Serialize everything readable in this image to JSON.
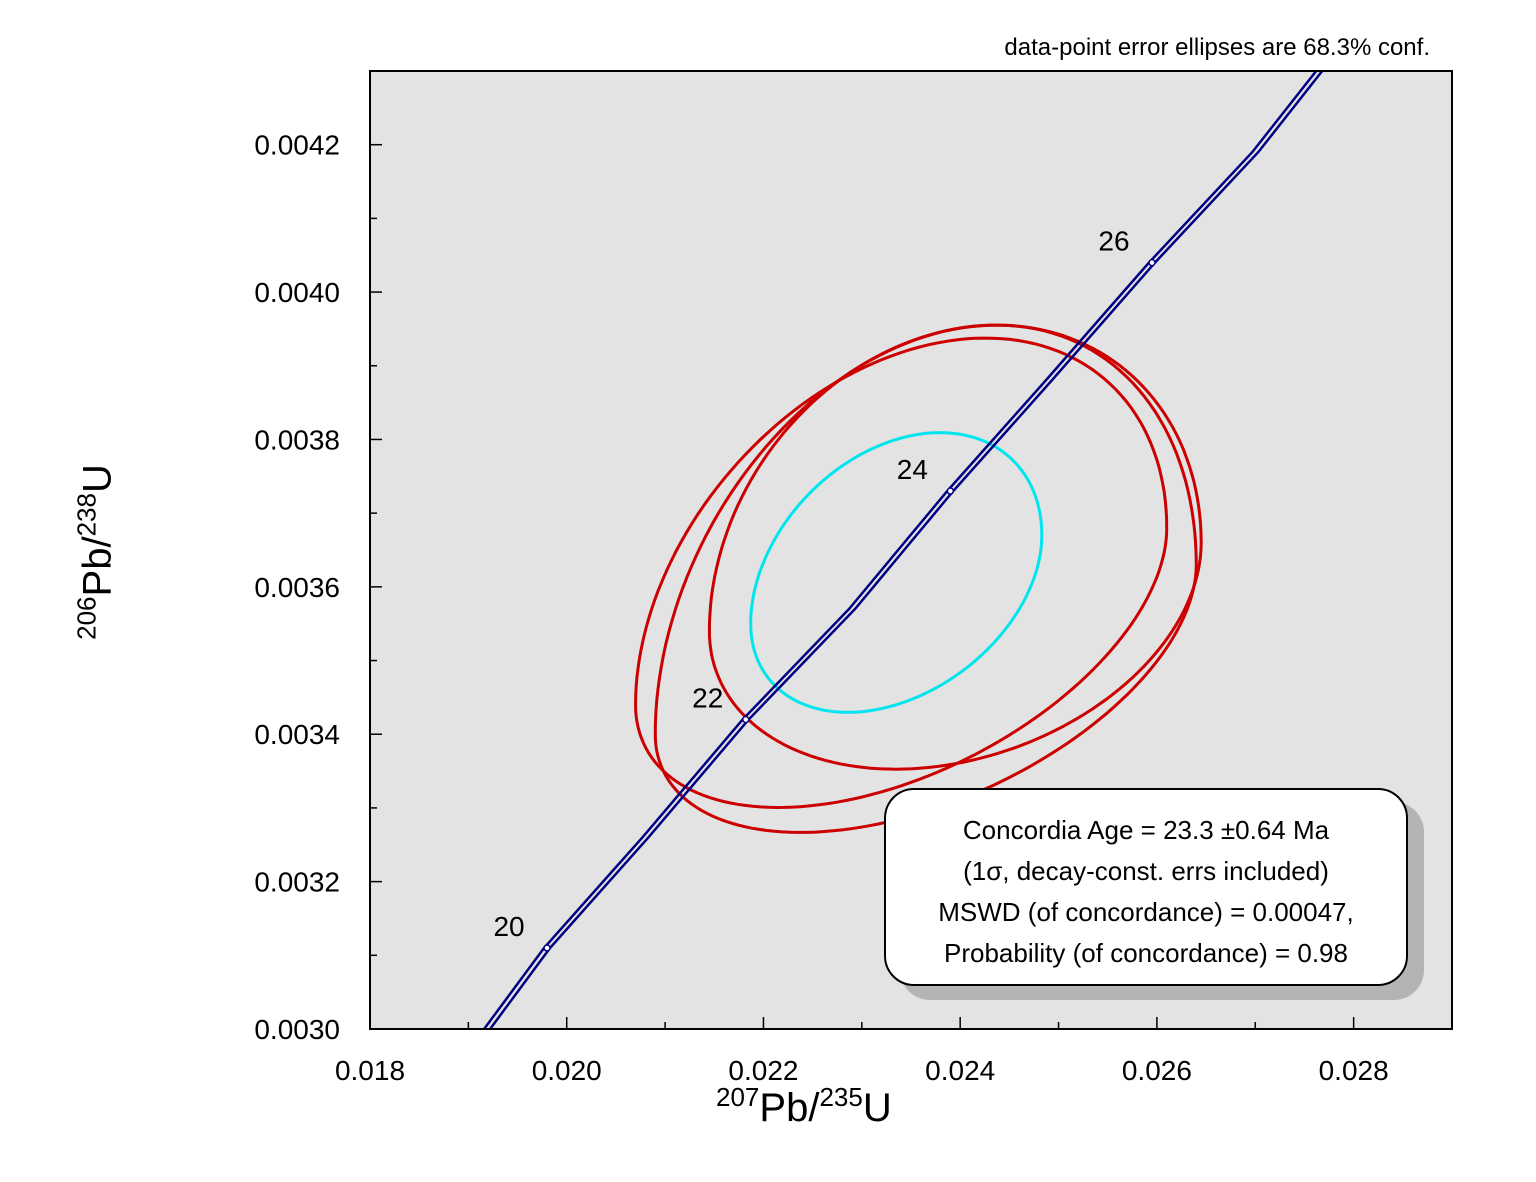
{
  "chart_data": {
    "type": "concordia",
    "note": "data-point error ellipses are 68.3% conf.",
    "xlabel": {
      "sup1": "207",
      "main1": "Pb/",
      "sup2": "235",
      "main2": "U"
    },
    "ylabel": {
      "sup1": "206",
      "main1": "Pb/",
      "sup2": "238",
      "main2": "U"
    },
    "xlim": [
      0.018,
      0.029
    ],
    "ylim": [
      0.003,
      0.0043
    ],
    "x_ticks": [
      "0.018",
      "0.020",
      "0.022",
      "0.024",
      "0.026",
      "0.028"
    ],
    "y_ticks": [
      "0.0030",
      "0.0032",
      "0.0034",
      "0.0036",
      "0.0038",
      "0.0040",
      "0.0042"
    ],
    "background": "#e3e3e3",
    "concordia": {
      "color": "#000080",
      "points": [
        {
          "x": 0.01919,
          "y": 0.003,
          "age": null
        },
        {
          "x": 0.0198,
          "y": 0.00311,
          "age": "20"
        },
        {
          "x": 0.0208,
          "y": 0.00326,
          "age": null
        },
        {
          "x": 0.02182,
          "y": 0.00342,
          "age": "22"
        },
        {
          "x": 0.0229,
          "y": 0.00357,
          "age": null
        },
        {
          "x": 0.0239,
          "y": 0.00373,
          "age": "24"
        },
        {
          "x": 0.0249,
          "y": 0.00388,
          "age": null
        },
        {
          "x": 0.02595,
          "y": 0.00404,
          "age": "26"
        },
        {
          "x": 0.027,
          "y": 0.00419,
          "age": null
        },
        {
          "x": 0.02765,
          "y": 0.0043,
          "age": null
        }
      ]
    },
    "ellipses": [
      {
        "cx": 0.02365,
        "cy": 0.003515,
        "rx": 0.00275,
        "ry": 0.000425,
        "ry2": 0.00022,
        "tilt": 0.000115,
        "color": "#cc0000"
      },
      {
        "cx": 0.0234,
        "cy": 0.00356,
        "rx": 0.0027,
        "ry": 0.000358,
        "ry2": 0.00023,
        "tilt": 0.00012,
        "color": "#cc0000"
      },
      {
        "cx": 0.02395,
        "cy": 0.0036,
        "rx": 0.0025,
        "ry": 0.00035,
        "ry2": 0.00024,
        "tilt": 6e-05,
        "color": "#cc0000"
      },
      {
        "cx": 0.02335,
        "cy": 0.00361,
        "rx": 0.00148,
        "ry": 0.00019,
        "ry2": 0.00017,
        "tilt": 6e-05,
        "color": "#00e5ee"
      }
    ],
    "info_box": [
      "Concordia  Age = 23.3 ±0.64  Ma",
      "(1σ, decay-const. errs included)",
      "MSWD  (of concordance) = 0.00047,",
      "Probability  (of concordance) = 0.98"
    ]
  }
}
